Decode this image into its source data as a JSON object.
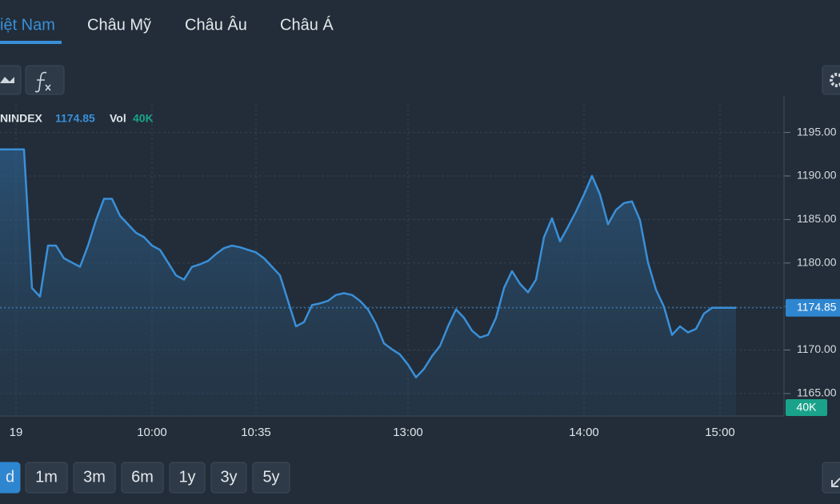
{
  "tabs": [
    "iệt Nam",
    "Châu Mỹ",
    "Châu Âu",
    "Châu Á"
  ],
  "ranges": [
    "d",
    "1m",
    "3m",
    "6m",
    "1y",
    "3y",
    "5y"
  ],
  "chart_data": {
    "type": "line",
    "symbol": "NINDEX",
    "last_price": 1174.85,
    "volume_label": "Vol",
    "volume": "40K",
    "categories": [
      null,
      null,
      "19",
      null,
      null,
      null,
      null,
      null,
      null,
      null,
      null,
      null,
      null,
      null,
      null,
      null,
      null,
      null,
      null,
      "10:00",
      null,
      null,
      null,
      null,
      null,
      null,
      null,
      null,
      null,
      null,
      null,
      null,
      "10:35",
      null,
      null,
      null,
      null,
      null,
      null,
      null,
      null,
      null,
      null,
      null,
      null,
      null,
      null,
      null,
      null,
      null,
      null,
      "13:00",
      null,
      null,
      null,
      null,
      null,
      null,
      null,
      null,
      null,
      null,
      null,
      null,
      null,
      null,
      null,
      null,
      null,
      null,
      null,
      null,
      null,
      "14:00",
      null,
      null,
      null,
      null,
      null,
      null,
      null,
      null,
      null,
      null,
      null,
      null,
      null,
      null,
      null,
      null,
      "15:00",
      null,
      null
    ],
    "series": [
      {
        "name": "NINDEX",
        "color": "#3a8fd8",
        "values": [
          1193.05,
          1193.05,
          1193.05,
          1193.05,
          1177.12,
          1176.14,
          1182.0,
          1182.0,
          1180.54,
          1180.05,
          1179.56,
          1182.0,
          1184.93,
          1187.38,
          1187.38,
          1185.42,
          1184.45,
          1183.47,
          1182.98,
          1182.0,
          1181.51,
          1180.05,
          1178.58,
          1178.09,
          1179.56,
          1179.85,
          1180.24,
          1181.03,
          1181.71,
          1182.0,
          1181.81,
          1181.51,
          1181.22,
          1180.54,
          1179.56,
          1178.58,
          1175.65,
          1172.72,
          1173.21,
          1175.16,
          1175.36,
          1175.65,
          1176.33,
          1176.53,
          1176.33,
          1175.65,
          1174.67,
          1173.01,
          1170.76,
          1170.08,
          1169.49,
          1168.32,
          1166.86,
          1167.83,
          1169.3,
          1170.47,
          1172.72,
          1174.67,
          1173.7,
          1172.23,
          1171.45,
          1171.74,
          1173.7,
          1177.12,
          1179.07,
          1177.61,
          1176.63,
          1178.09,
          1182.98,
          1185.13,
          1182.49,
          1184.15,
          1185.91,
          1187.87,
          1190.02,
          1187.87,
          1184.45,
          1186.1,
          1186.89,
          1187.08,
          1184.93,
          1180.05,
          1176.92,
          1174.97,
          1171.74,
          1172.72,
          1172.03,
          1172.43,
          1174.19,
          1174.85,
          1174.85,
          1174.85,
          1174.85
        ]
      }
    ],
    "ylim": [
      1162.42,
      1198.27
    ],
    "yticks": [
      {
        "value": 1165,
        "label": "1165.00"
      },
      {
        "value": 1170,
        "label": "1170.00"
      },
      {
        "value": 1175,
        "label": "1175.00"
      },
      {
        "value": 1180,
        "label": "1180.00"
      },
      {
        "value": 1185,
        "label": "1185.00"
      },
      {
        "value": 1190,
        "label": "1190.00"
      },
      {
        "value": 1195,
        "label": "1195.00"
      }
    ],
    "grid": true
  }
}
